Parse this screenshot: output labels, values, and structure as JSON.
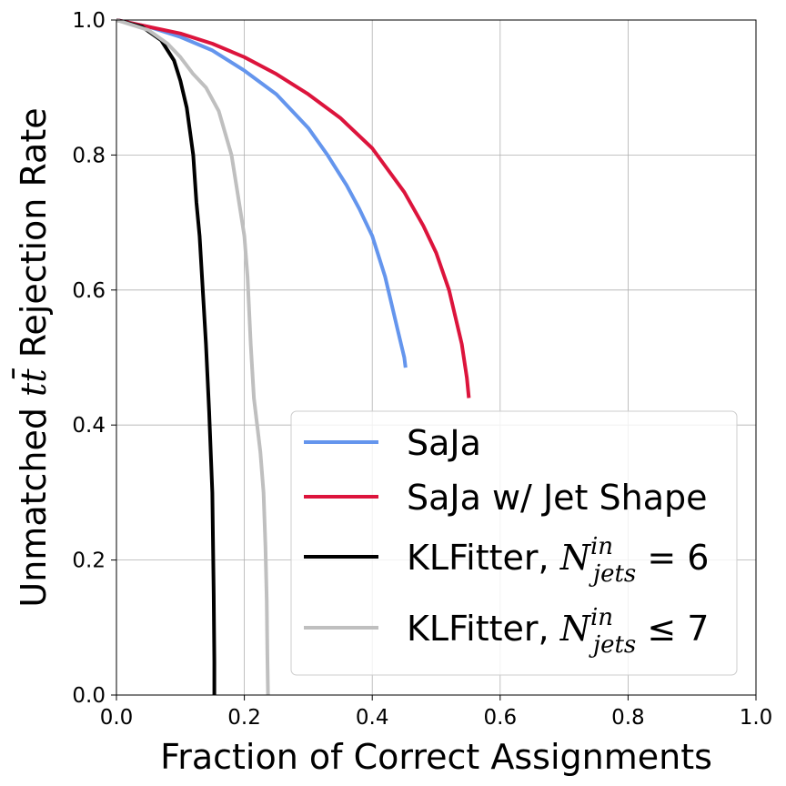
{
  "chart_data": {
    "type": "line",
    "xlabel": "Fraction of Correct Assignments",
    "ylabel": {
      "prefix": "Unmatched ",
      "math": "tt̄",
      "suffix": " Rejection Rate"
    },
    "xlim": [
      0.0,
      1.0
    ],
    "ylim": [
      0.0,
      1.0
    ],
    "xticks": [
      "0.0",
      "0.2",
      "0.4",
      "0.6",
      "0.8",
      "1.0"
    ],
    "yticks": [
      "0.0",
      "0.2",
      "0.4",
      "0.6",
      "0.8",
      "1.0"
    ],
    "grid": true,
    "legend_position": "lower-right",
    "series": [
      {
        "name": "SaJa",
        "legend": {
          "text": "SaJa"
        },
        "color": "#6495ED",
        "x": [
          0.0,
          0.05,
          0.1,
          0.15,
          0.2,
          0.25,
          0.3,
          0.33,
          0.36,
          0.38,
          0.4,
          0.42,
          0.44,
          0.45,
          0.452
        ],
        "y": [
          1.0,
          0.99,
          0.975,
          0.955,
          0.925,
          0.89,
          0.84,
          0.8,
          0.755,
          0.72,
          0.68,
          0.62,
          0.54,
          0.5,
          0.485
        ]
      },
      {
        "name": "SaJa w/ Jet Shape",
        "legend": {
          "text": "SaJa w/ Jet Shape"
        },
        "color": "#DC143C",
        "x": [
          0.0,
          0.1,
          0.15,
          0.2,
          0.25,
          0.3,
          0.35,
          0.4,
          0.45,
          0.48,
          0.5,
          0.52,
          0.54,
          0.548,
          0.551
        ],
        "y": [
          1.0,
          0.98,
          0.965,
          0.945,
          0.92,
          0.89,
          0.855,
          0.81,
          0.745,
          0.695,
          0.655,
          0.6,
          0.52,
          0.47,
          0.44
        ]
      },
      {
        "name": "KLFitter, N_jets^in = 6",
        "legend": {
          "prefix": "KLFitter, ",
          "base": "N",
          "sup": "in",
          "sub": "jets",
          "op": " = 6"
        },
        "color": "#000000",
        "x": [
          0.0,
          0.04,
          0.07,
          0.09,
          0.1,
          0.11,
          0.12,
          0.125,
          0.13,
          0.135,
          0.14,
          0.145,
          0.15,
          0.152,
          0.153,
          0.153
        ],
        "y": [
          1.0,
          0.99,
          0.97,
          0.94,
          0.91,
          0.87,
          0.8,
          0.73,
          0.68,
          0.6,
          0.52,
          0.42,
          0.3,
          0.15,
          0.05,
          0.0
        ]
      },
      {
        "name": "KLFitter, N_jets^in ≤ 7",
        "legend": {
          "prefix": "KLFitter, ",
          "base": "N",
          "sup": "in",
          "sub": "jets",
          "op": " ≤ 7"
        },
        "color": "#BFBFBF",
        "x": [
          0.0,
          0.05,
          0.08,
          0.1,
          0.12,
          0.14,
          0.16,
          0.18,
          0.19,
          0.2,
          0.205,
          0.21,
          0.215,
          0.225,
          0.23,
          0.233,
          0.235,
          0.236,
          0.237
        ],
        "y": [
          1.0,
          0.985,
          0.965,
          0.945,
          0.92,
          0.9,
          0.865,
          0.8,
          0.74,
          0.68,
          0.62,
          0.52,
          0.44,
          0.36,
          0.3,
          0.22,
          0.14,
          0.06,
          0.0
        ]
      }
    ]
  }
}
